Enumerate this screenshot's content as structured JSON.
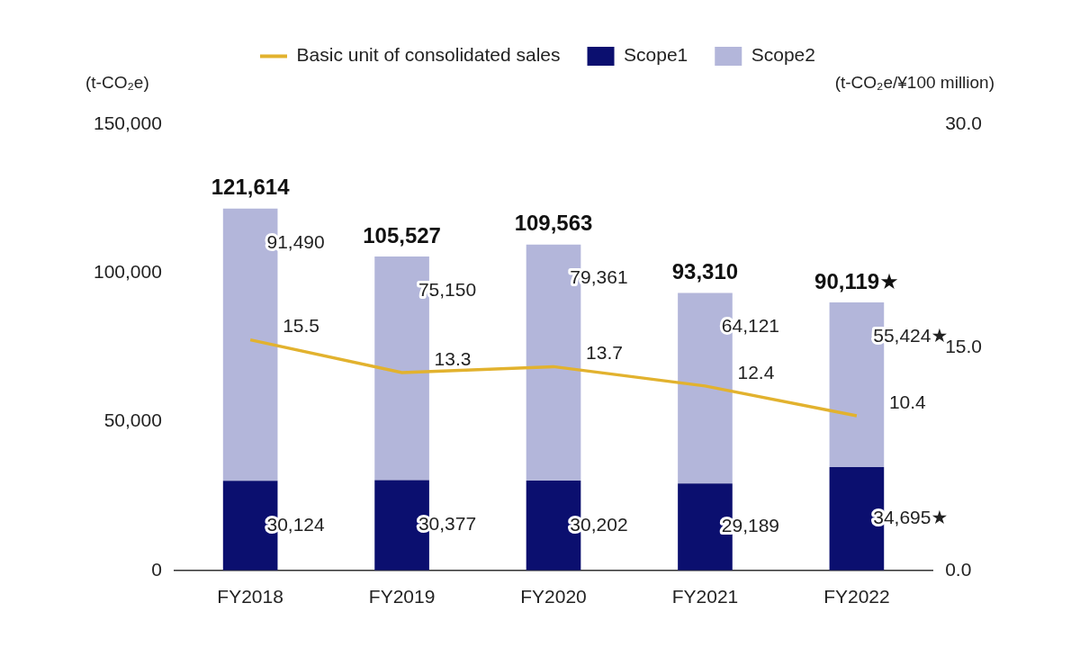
{
  "chart_data": {
    "type": "bar",
    "stacked": true,
    "data_labels": true,
    "legend": "top",
    "grid": false,
    "categories": [
      "FY2018",
      "FY2019",
      "FY2020",
      "FY2021",
      "FY2022"
    ],
    "y_label": "(t-CO₂e)",
    "y2_label": "(t-CO₂e/¥100 million)",
    "ylim": [
      0,
      150000
    ],
    "yticks": [
      0,
      {
        "value": 50000,
        "label": "50,000"
      },
      {
        "value": 100000,
        "label": "100,000"
      },
      {
        "value": 150000,
        "label": "150,000"
      }
    ],
    "y2lim": [
      0,
      30
    ],
    "y2ticks": [
      {
        "value": 0,
        "label": "0.0"
      },
      {
        "value": 15,
        "label": "15.0"
      },
      {
        "value": 30,
        "label": "30.0"
      }
    ],
    "series": [
      {
        "name": "Scope1",
        "color": "#0b0f6f",
        "values": [
          30124,
          30377,
          30202,
          29189,
          34695
        ],
        "value_labels": [
          "30,124",
          "30,377",
          "30,202",
          "29,189",
          "34,695★"
        ]
      },
      {
        "name": "Scope2",
        "color": "#b3b6da",
        "values": [
          91490,
          75150,
          79361,
          64121,
          55424
        ],
        "value_labels": [
          "91,490",
          "75,150",
          "79,361",
          "64,121",
          "55,424★"
        ]
      },
      {
        "name": "Basic unit of consolidated sales",
        "type": "line",
        "axis": "y2",
        "color": "#e2b22e",
        "values": [
          15.5,
          13.3,
          13.7,
          12.4,
          10.4
        ]
      }
    ],
    "totals": {
      "values": [
        121614,
        105527,
        109563,
        93310,
        90119
      ],
      "value_labels": [
        "121,614",
        "105,527",
        "109,563",
        "93,310",
        "90,119★"
      ]
    }
  }
}
